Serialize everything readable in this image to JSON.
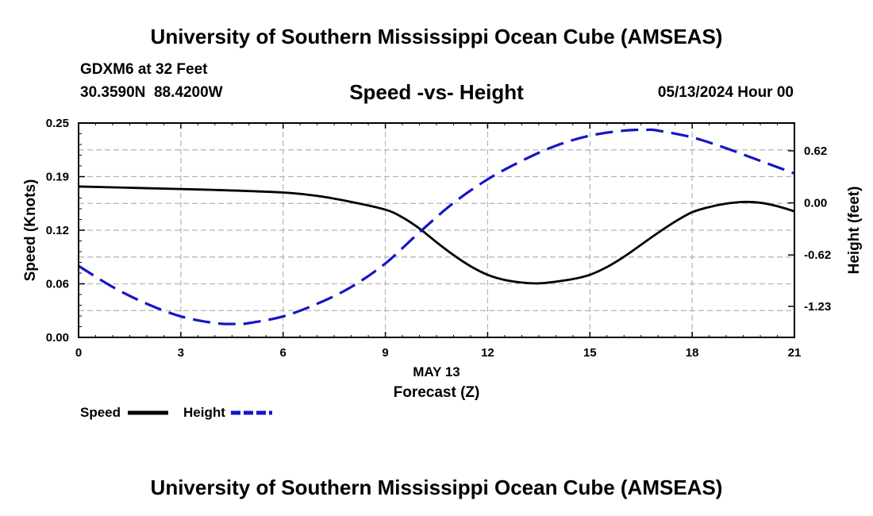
{
  "page": {
    "title": "University of Southern Mississippi Ocean Cube (AMSEAS)",
    "footer_title": "University of Southern Mississippi Ocean Cube (AMSEAS)",
    "station": "GDXM6 at 32 Feet",
    "coords": "30.3590N  88.4200W",
    "date": "05/13/2024 Hour 00"
  },
  "colors": {
    "speed": "#000000",
    "height": "#1515c8",
    "grid": "#b4b4b4"
  },
  "chart_data": {
    "type": "line",
    "title": "Speed -vs- Height",
    "xlabel": "Forecast (Z)",
    "xlabel_date": "MAY 13",
    "ylabel_left": "Speed (Knots)",
    "ylabel_right": "Height (feet)",
    "xlim": [
      0,
      21
    ],
    "ylim_left": [
      0,
      0.25
    ],
    "ylim_right": [
      -1.6,
      0.95
    ],
    "x_ticks": [
      "0",
      "3",
      "6",
      "9",
      "12",
      "15",
      "18",
      "21"
    ],
    "y_ticks_left": [
      "0.00",
      "0.06",
      "0.12",
      "0.19",
      "0.25"
    ],
    "y_ticks_right": [
      "-1.23",
      "-0.62",
      "0.00",
      "0.62"
    ],
    "grid": true,
    "legend_position": "bottom-left",
    "series": [
      {
        "name": "Speed",
        "axis": "left",
        "style": "solid",
        "x": [
          0,
          2,
          4,
          6,
          7,
          8,
          9,
          9.5,
          10,
          10.5,
          11,
          11.5,
          12,
          12.5,
          13,
          13.5,
          14,
          14.5,
          15,
          15.5,
          16,
          16.5,
          17,
          17.5,
          18,
          18.5,
          19,
          19.5,
          20,
          20.5,
          21
        ],
        "values": [
          0.176,
          0.174,
          0.172,
          0.169,
          0.165,
          0.158,
          0.149,
          0.14,
          0.127,
          0.111,
          0.096,
          0.083,
          0.073,
          0.067,
          0.064,
          0.063,
          0.065,
          0.068,
          0.073,
          0.082,
          0.094,
          0.108,
          0.122,
          0.135,
          0.146,
          0.152,
          0.156,
          0.158,
          0.157,
          0.153,
          0.147
        ]
      },
      {
        "name": "Height",
        "axis": "right",
        "style": "dashed",
        "x": [
          0,
          1,
          2,
          3,
          4,
          4.6,
          5,
          6,
          7,
          8,
          9,
          10,
          11,
          12,
          13,
          14,
          15,
          16,
          16.7,
          17,
          18,
          19,
          20,
          21
        ],
        "values": [
          -0.75,
          -1.0,
          -1.2,
          -1.35,
          -1.43,
          -1.44,
          -1.43,
          -1.35,
          -1.2,
          -1.0,
          -0.72,
          -0.35,
          0.0,
          0.28,
          0.5,
          0.68,
          0.8,
          0.86,
          0.87,
          0.86,
          0.78,
          0.65,
          0.5,
          0.35
        ]
      }
    ]
  }
}
